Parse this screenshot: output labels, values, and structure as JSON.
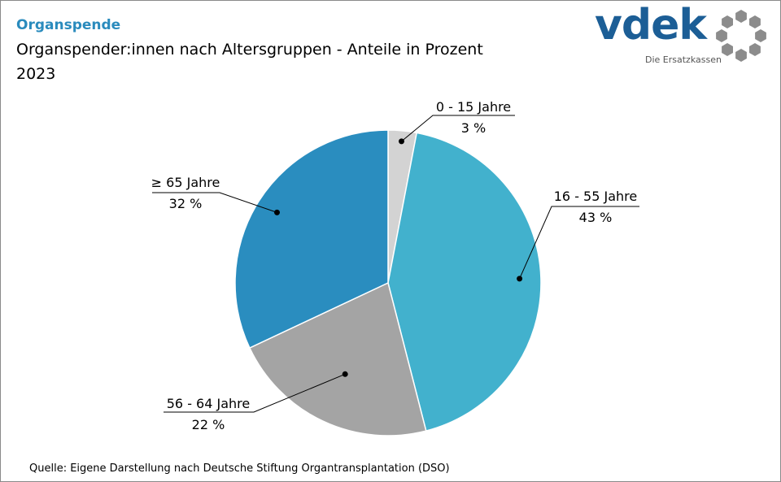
{
  "header": {
    "kicker": "Organspende",
    "title": "Organspender:innen nach Altersgruppen - Anteile in Prozent",
    "year": "2023"
  },
  "logo": {
    "word": "vdek",
    "subtitle": "Die Ersatzkassen",
    "ring_color": "#8c8c8c"
  },
  "source": "Quelle: Eigene Darstellung nach Deutsche Stiftung Organtransplantation (DSO)",
  "chart_data": {
    "type": "pie",
    "categories": [
      "0 - 15 Jahre",
      "16 - 55 Jahre",
      "56 - 64 Jahre",
      "≥ 65 Jahre"
    ],
    "values": [
      3,
      43,
      22,
      32
    ],
    "value_labels": [
      "3 %",
      "43 %",
      "22 %",
      "32 %"
    ],
    "colors": [
      "#d3d3d3",
      "#42b1cd",
      "#a4a4a4",
      "#2a8dbf"
    ],
    "start": "12 o'clock, clockwise"
  }
}
